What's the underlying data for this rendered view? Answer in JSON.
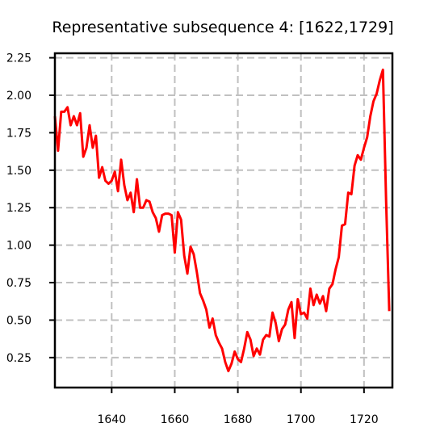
{
  "chart_data": {
    "type": "line",
    "title": "Representative subsequence 4: [1622,1729]",
    "xlabel": "",
    "ylabel": "",
    "xlim": [
      1622,
      1729
    ],
    "ylim": [
      0.05,
      2.28
    ],
    "xticks": [
      1640,
      1660,
      1680,
      1700,
      1720
    ],
    "yticks": [
      0.25,
      0.5,
      0.75,
      1.0,
      1.25,
      1.5,
      1.75,
      2.0,
      2.25
    ],
    "xtick_labels": [
      "1640",
      "1660",
      "1680",
      "1700",
      "1720"
    ],
    "ytick_labels": [
      "0.25",
      "0.50",
      "0.75",
      "1.00",
      "1.25",
      "1.50",
      "1.75",
      "2.00",
      "2.25"
    ],
    "grid": true,
    "colors": {
      "line": "#ff0000",
      "grid": "#c0c0c0",
      "axis": "#000000"
    },
    "series": [
      {
        "x": [
          1622,
          1623,
          1624,
          1625,
          1626,
          1627,
          1628,
          1629,
          1630,
          1631,
          1632,
          1633,
          1634,
          1635,
          1636,
          1637,
          1638,
          1639,
          1640,
          1641,
          1642,
          1643,
          1644,
          1645,
          1646,
          1647,
          1648,
          1649,
          1650,
          1651,
          1652,
          1653,
          1654,
          1655,
          1656,
          1657,
          1658,
          1659,
          1660,
          1661,
          1662,
          1663,
          1664,
          1665,
          1666,
          1667,
          1668,
          1669,
          1670,
          1671,
          1672,
          1673,
          1674,
          1675,
          1676,
          1677,
          1678,
          1679,
          1680,
          1681,
          1682,
          1683,
          1684,
          1685,
          1686,
          1687,
          1688,
          1689,
          1690,
          1691,
          1692,
          1693,
          1694,
          1695,
          1696,
          1697,
          1698,
          1699,
          1700,
          1701,
          1702,
          1703,
          1704,
          1705,
          1706,
          1707,
          1708,
          1709,
          1710,
          1711,
          1712,
          1713,
          1714,
          1715,
          1716,
          1717,
          1718,
          1719,
          1720,
          1721,
          1722,
          1723,
          1724,
          1725,
          1726,
          1727,
          1728
        ],
        "values": [
          1.86,
          1.63,
          1.89,
          1.89,
          1.92,
          1.8,
          1.86,
          1.8,
          1.88,
          1.59,
          1.65,
          1.8,
          1.65,
          1.73,
          1.45,
          1.52,
          1.43,
          1.41,
          1.43,
          1.49,
          1.36,
          1.57,
          1.4,
          1.3,
          1.35,
          1.22,
          1.44,
          1.25,
          1.25,
          1.3,
          1.29,
          1.22,
          1.18,
          1.09,
          1.2,
          1.21,
          1.21,
          1.2,
          0.95,
          1.22,
          1.17,
          0.93,
          0.81,
          0.99,
          0.94,
          0.82,
          0.68,
          0.63,
          0.57,
          0.45,
          0.51,
          0.4,
          0.35,
          0.31,
          0.22,
          0.16,
          0.21,
          0.29,
          0.24,
          0.22,
          0.31,
          0.42,
          0.37,
          0.26,
          0.31,
          0.27,
          0.37,
          0.4,
          0.39,
          0.55,
          0.48,
          0.36,
          0.44,
          0.47,
          0.57,
          0.62,
          0.38,
          0.64,
          0.54,
          0.55,
          0.51,
          0.71,
          0.6,
          0.67,
          0.61,
          0.66,
          0.56,
          0.71,
          0.74,
          0.84,
          0.92,
          1.13,
          1.14,
          1.35,
          1.34,
          1.53,
          1.6,
          1.57,
          1.65,
          1.72,
          1.86,
          1.96,
          2.01,
          2.1,
          2.17,
          1.3,
          0.56
        ]
      }
    ]
  }
}
